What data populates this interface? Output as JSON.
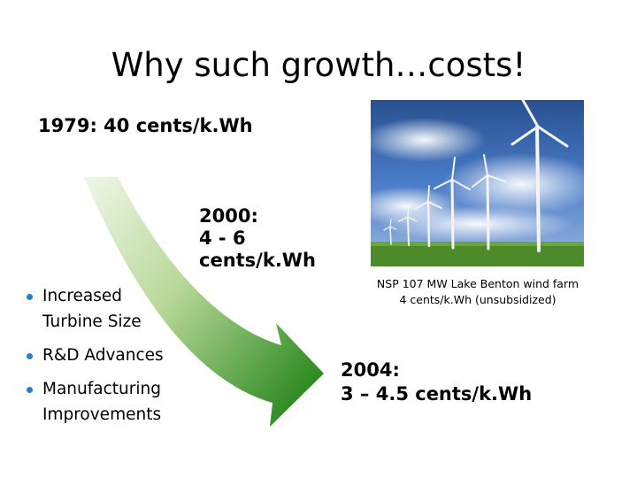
{
  "slide": {
    "title": "Why such growth…costs!",
    "price_1979": "1979: 40 cents/k.Wh",
    "price_2000_lines": [
      "2000:",
      "4 - 6",
      "cents/k.Wh"
    ],
    "price_2004_lines": [
      "2004:",
      "3 – 4.5 cents/k.Wh"
    ],
    "photo_caption_lines": [
      "NSP 107 MW Lake Benton wind farm",
      "4 cents/k.Wh (unsubsidized)"
    ],
    "bullets": [
      [
        "Increased",
        "Turbine Size"
      ],
      [
        "R&D Advances"
      ],
      [
        "Manufacturing",
        "Improvements"
      ]
    ],
    "colors": {
      "bullet": "#2e7bbf",
      "arrow_start": "#e4f0d8",
      "arrow_end": "#2f8a22",
      "sky": "#3d6fc4",
      "grass": "#4e8a2a"
    }
  }
}
